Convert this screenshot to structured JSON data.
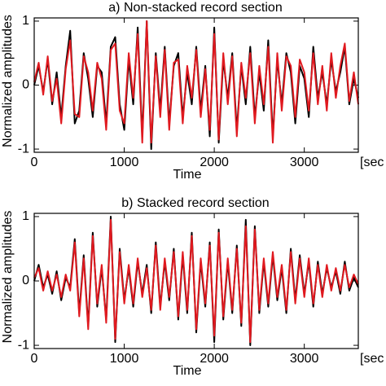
{
  "chart_data": [
    {
      "type": "line",
      "title": "a) Non-stacked record section",
      "x_label": "Time",
      "x_unit": "[sec",
      "y_label": "Normalized amplitudes",
      "x": [
        0,
        50,
        100,
        150,
        200,
        250,
        300,
        350,
        400,
        450,
        500,
        550,
        600,
        650,
        700,
        750,
        800,
        850,
        900,
        950,
        1000,
        1050,
        1100,
        1150,
        1200,
        1250,
        1300,
        1350,
        1400,
        1450,
        1500,
        1550,
        1600,
        1650,
        1700,
        1750,
        1800,
        1850,
        1900,
        1950,
        2000,
        2050,
        2100,
        2150,
        2200,
        2250,
        2300,
        2350,
        2400,
        2450,
        2500,
        2550,
        2600,
        2650,
        2700,
        2750,
        2800,
        2850,
        2900,
        2950,
        3000,
        3050,
        3100,
        3150,
        3200,
        3250,
        3300,
        3350,
        3400,
        3450,
        3500,
        3550,
        3600
      ],
      "series": [
        {
          "name": "black",
          "color": "#000000",
          "values": [
            0,
            0.3,
            -0.1,
            0.4,
            -0.3,
            0.2,
            -0.5,
            0.3,
            0.85,
            -0.6,
            -0.4,
            0.5,
            0.1,
            -0.5,
            0.3,
            0.2,
            -0.6,
            0.6,
            0.75,
            -0.3,
            -0.7,
            0.4,
            -0.3,
            0.9,
            -0.8,
            1.0,
            -1.0,
            0.5,
            -0.4,
            0.6,
            -0.6,
            0.3,
            0.5,
            -0.5,
            0.2,
            -0.3,
            0.6,
            -0.4,
            0.3,
            -0.8,
            0.9,
            -0.9,
            0.4,
            -0.2,
            0.5,
            -0.7,
            0.3,
            -0.3,
            0.6,
            -0.5,
            0.2,
            -0.4,
            0.7,
            -0.8,
            0.4,
            -0.3,
            0.5,
            0.2,
            -0.6,
            0.3,
            0.1,
            -0.5,
            0.6,
            -0.2,
            0.2,
            -0.3,
            0.4,
            -0.1,
            0.2,
            0.6,
            -0.3,
            0.1,
            -0.2
          ]
        },
        {
          "name": "red",
          "color": "#e0191f",
          "values": [
            0.05,
            0.35,
            -0.15,
            0.45,
            -0.25,
            0.1,
            -0.6,
            0.25,
            0.7,
            -0.45,
            -0.5,
            0.45,
            0.2,
            -0.4,
            0.35,
            0.1,
            -0.7,
            0.55,
            0.65,
            -0.4,
            -0.6,
            0.5,
            -0.2,
            0.8,
            -0.9,
            1.0,
            -0.9,
            0.45,
            -0.5,
            0.55,
            -0.7,
            0.35,
            0.4,
            -0.6,
            0.3,
            -0.2,
            0.55,
            -0.5,
            0.25,
            -0.7,
            0.8,
            -0.85,
            0.5,
            -0.3,
            0.45,
            -0.8,
            0.35,
            -0.2,
            0.5,
            -0.6,
            0.3,
            -0.3,
            0.6,
            -0.9,
            0.5,
            -0.4,
            0.45,
            0.3,
            -0.5,
            0.4,
            0.2,
            -0.4,
            0.5,
            -0.3,
            0.3,
            -0.4,
            0.5,
            -0.2,
            0.3,
            0.65,
            -0.25,
            0.2,
            -0.3
          ]
        }
      ],
      "xlim": [
        0,
        3600
      ],
      "xticks": [
        0,
        1000,
        2000,
        3000
      ],
      "ylim": [
        -1.05,
        1.05
      ],
      "yticks": [
        -1,
        0,
        1
      ]
    },
    {
      "type": "line",
      "title": "b) Stacked record section",
      "x_label": "Time",
      "x_unit": "[sec",
      "y_label": "Normalized amplitudes",
      "x": [
        0,
        50,
        100,
        150,
        200,
        250,
        300,
        350,
        400,
        450,
        500,
        550,
        600,
        650,
        700,
        750,
        800,
        850,
        900,
        950,
        1000,
        1050,
        1100,
        1150,
        1200,
        1250,
        1300,
        1350,
        1400,
        1450,
        1500,
        1550,
        1600,
        1650,
        1700,
        1750,
        1800,
        1850,
        1900,
        1950,
        2000,
        2050,
        2100,
        2150,
        2200,
        2250,
        2300,
        2350,
        2400,
        2450,
        2500,
        2550,
        2600,
        2650,
        2700,
        2750,
        2800,
        2850,
        2900,
        2950,
        3000,
        3050,
        3100,
        3150,
        3200,
        3250,
        3300,
        3350,
        3400,
        3450,
        3500,
        3550,
        3600
      ],
      "series": [
        {
          "name": "black",
          "color": "#000000",
          "values": [
            0,
            0.25,
            -0.1,
            0.1,
            -0.2,
            0.15,
            -0.3,
            0.05,
            -0.1,
            0.65,
            -0.5,
            0.4,
            -0.7,
            0.75,
            -0.4,
            0.2,
            -0.6,
            1.0,
            -0.95,
            0.5,
            -0.3,
            0.2,
            -0.4,
            0.3,
            -0.2,
            0.25,
            -0.5,
            0.6,
            -0.4,
            0.3,
            -0.3,
            0.5,
            -0.6,
            0.4,
            -0.5,
            0.75,
            -0.8,
            0.3,
            -0.4,
            0.6,
            -0.95,
            0.8,
            -0.6,
            0.3,
            -0.5,
            0.55,
            -0.7,
            0.95,
            -1.0,
            0.85,
            -0.5,
            0.3,
            -0.4,
            0.4,
            -0.3,
            0.2,
            -0.5,
            0.5,
            -0.3,
            0.4,
            -0.2,
            0.3,
            -0.4,
            0.3,
            -0.2,
            0.2,
            -0.1,
            0.15,
            -0.2,
            0.3,
            -0.15,
            0.05,
            -0.1
          ]
        },
        {
          "name": "red",
          "color": "#e0191f",
          "values": [
            0.05,
            0.2,
            -0.15,
            0.15,
            -0.15,
            0.1,
            -0.25,
            0.1,
            -0.15,
            0.6,
            -0.55,
            0.35,
            -0.75,
            0.7,
            -0.35,
            0.25,
            -0.65,
            0.95,
            -0.9,
            0.45,
            -0.35,
            0.25,
            -0.35,
            0.35,
            -0.25,
            0.2,
            -0.45,
            0.55,
            -0.45,
            0.35,
            -0.25,
            0.45,
            -0.55,
            0.45,
            -0.45,
            0.7,
            -0.75,
            0.35,
            -0.35,
            0.55,
            -0.85,
            0.75,
            -0.55,
            0.35,
            -0.45,
            0.5,
            -0.65,
            0.85,
            -0.95,
            0.8,
            -0.45,
            0.35,
            -0.35,
            0.45,
            -0.25,
            0.25,
            -0.45,
            0.45,
            -0.35,
            0.35,
            -0.25,
            0.35,
            -0.35,
            0.25,
            -0.25,
            0.25,
            -0.15,
            0.2,
            -0.15,
            0.25,
            -0.1,
            0.1,
            -0.05
          ]
        }
      ],
      "xlim": [
        0,
        3600
      ],
      "xticks": [
        0,
        1000,
        2000,
        3000
      ],
      "ylim": [
        -1.05,
        1.05
      ],
      "yticks": [
        -1,
        0,
        1
      ]
    }
  ]
}
